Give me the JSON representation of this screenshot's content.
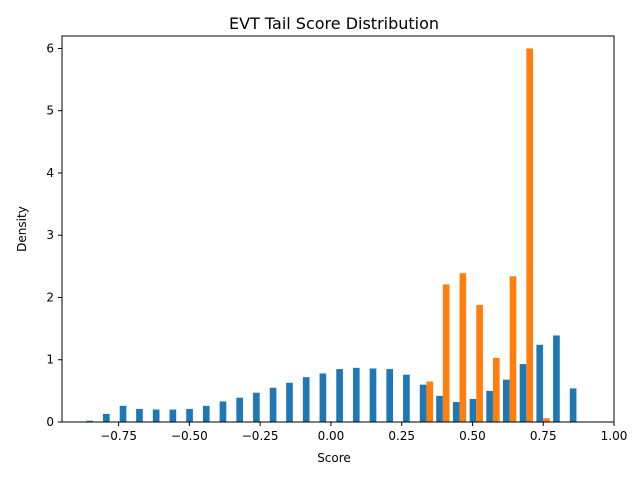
{
  "colors": {
    "series_a": "#1f77b4",
    "series_b": "#ff7f0e",
    "axis": "#000000",
    "background": "#ffffff"
  },
  "chart_data": {
    "type": "bar",
    "title": "EVT Tail Score Distribution",
    "xlabel": "Score",
    "ylabel": "Density",
    "xlim": [
      -0.95,
      1.0
    ],
    "ylim": [
      0,
      6.2
    ],
    "xticks": [
      "-0.75",
      "-0.50",
      "-0.25",
      "0.00",
      "0.25",
      "0.50",
      "0.75",
      "1.00"
    ],
    "yticks": [
      "0",
      "1",
      "2",
      "3",
      "4",
      "5",
      "6"
    ],
    "grid": false,
    "legend": "none",
    "bin_width": 0.0588,
    "series": [
      {
        "bin_starts": [
          -0.87,
          -0.811,
          -0.752,
          -0.694,
          -0.635,
          -0.576,
          -0.517,
          -0.458,
          -0.399,
          -0.34,
          -0.281,
          -0.222,
          -0.164,
          -0.105,
          -0.046,
          0.013,
          0.072,
          0.131,
          0.19,
          0.249,
          0.308,
          0.366,
          0.425,
          0.484,
          0.543,
          0.602,
          0.661,
          0.72,
          0.779,
          0.838
        ],
        "values": [
          0.02,
          0.13,
          0.26,
          0.21,
          0.2,
          0.2,
          0.21,
          0.26,
          0.33,
          0.39,
          0.47,
          0.55,
          0.63,
          0.72,
          0.78,
          0.85,
          0.87,
          0.86,
          0.85,
          0.76,
          0.6,
          0.42,
          0.32,
          0.37,
          0.5,
          0.68,
          0.93,
          1.24,
          1.39,
          0.54
        ]
      },
      {
        "bin_starts": [
          0.249,
          0.308,
          0.366,
          0.425,
          0.484,
          0.543,
          0.602,
          0.661,
          0.72
        ],
        "values": [
          0.01,
          0.65,
          2.21,
          2.39,
          1.88,
          1.03,
          2.34,
          6.0,
          0.06
        ]
      }
    ]
  }
}
